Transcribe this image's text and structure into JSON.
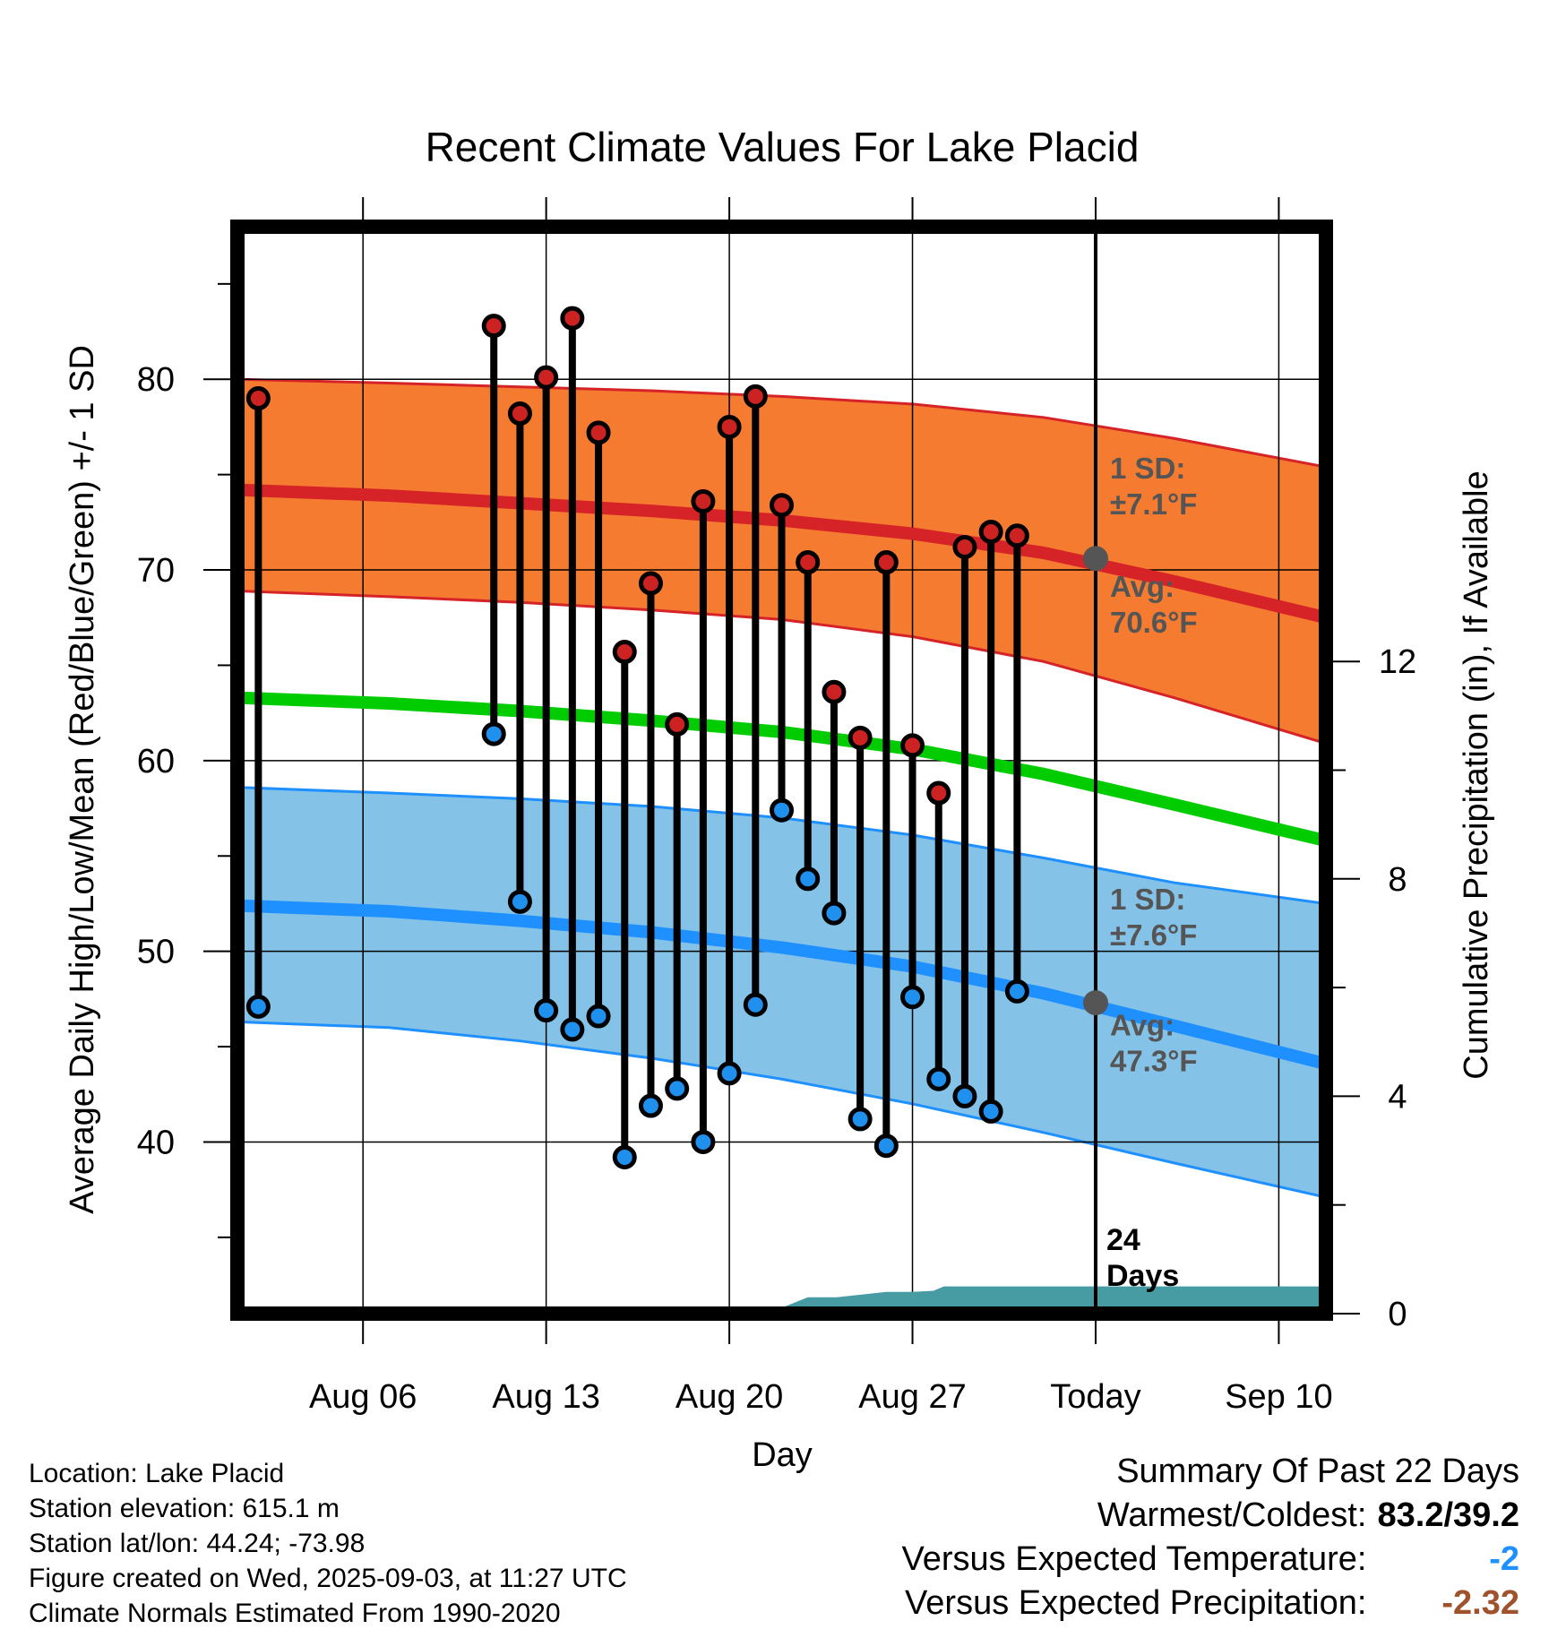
{
  "chart_data": {
    "type": "line",
    "title": "Recent Climate Values For Lake Placid",
    "xlabel": "Day",
    "ylabel": "Average Daily High/Low/Mean (Red/Blue/Green) +/- 1 SD",
    "y2label": "Cumulative Precipitation (in), If Available",
    "xlim": [
      -0.8,
      40.8
    ],
    "ylim": [
      31,
      88
    ],
    "y2lim": [
      0,
      20
    ],
    "x_ticks": [
      {
        "x": 4,
        "label": "Aug 06"
      },
      {
        "x": 11,
        "label": "Aug 13"
      },
      {
        "x": 18,
        "label": "Aug 20"
      },
      {
        "x": 25,
        "label": "Aug 27"
      },
      {
        "x": 32,
        "label": "Today"
      },
      {
        "x": 39,
        "label": "Sep 10"
      }
    ],
    "y_ticks": [
      40,
      50,
      60,
      70,
      80
    ],
    "y2_ticks": [
      0,
      4,
      8,
      12
    ],
    "grid": true,
    "today_x": 32,
    "days_label": "24\nDays",
    "normals": {
      "x": [
        -0.8,
        5,
        10,
        15,
        20,
        25,
        30,
        35,
        40.8
      ],
      "high_avg": [
        74.2,
        73.9,
        73.5,
        73.1,
        72.6,
        71.9,
        70.9,
        69.4,
        67.5
      ],
      "high_upper": [
        80.0,
        79.8,
        79.6,
        79.4,
        79.1,
        78.7,
        78.0,
        76.9,
        75.4
      ],
      "high_lower": [
        68.9,
        68.6,
        68.3,
        67.9,
        67.4,
        66.5,
        65.2,
        63.3,
        60.9
      ],
      "mean": [
        63.3,
        63.0,
        62.6,
        62.1,
        61.5,
        60.6,
        59.3,
        57.7,
        55.8
      ],
      "low_avg": [
        52.4,
        52.1,
        51.6,
        51.0,
        50.2,
        49.2,
        47.8,
        46.1,
        44.1
      ],
      "low_upper": [
        58.6,
        58.3,
        58.0,
        57.6,
        57.0,
        56.1,
        54.9,
        53.6,
        52.5
      ],
      "low_lower": [
        46.3,
        46.0,
        45.3,
        44.4,
        43.3,
        42.0,
        40.5,
        38.9,
        37.1
      ]
    },
    "series": [
      {
        "name": "High",
        "x": [
          0,
          9,
          10,
          11,
          12,
          13,
          14,
          15,
          16,
          17,
          18,
          19,
          20,
          21,
          22,
          23,
          24,
          25,
          26,
          27,
          28,
          29
        ],
        "values": [
          79.0,
          82.8,
          78.2,
          80.1,
          83.2,
          77.2,
          65.7,
          69.3,
          61.9,
          73.6,
          77.5,
          79.1,
          73.4,
          70.4,
          63.6,
          61.2,
          70.4,
          60.8,
          58.3,
          71.2,
          72.0,
          71.8
        ]
      },
      {
        "name": "Low",
        "x": [
          0,
          9,
          10,
          11,
          12,
          13,
          14,
          15,
          16,
          17,
          18,
          19,
          20,
          21,
          22,
          23,
          24,
          25,
          26,
          27,
          28,
          29
        ],
        "values": [
          47.1,
          61.4,
          52.6,
          46.9,
          45.9,
          46.6,
          39.2,
          41.9,
          42.8,
          40.0,
          43.6,
          47.2,
          57.4,
          53.8,
          52.0,
          41.2,
          39.8,
          47.6,
          43.3,
          42.4,
          41.6,
          47.9
        ]
      }
    ],
    "precip": {
      "x": [
        15.8,
        19.7,
        21.0,
        22.1,
        24.0,
        25.0,
        29.0,
        40.8
      ],
      "values": [
        0.05,
        0.08,
        0.3,
        0.3,
        0.4,
        0.5,
        0.5,
        0.5
      ],
      "steps": [
        [
          -0.8,
          0
        ],
        [
          15.8,
          0
        ],
        [
          16.0,
          0.05
        ],
        [
          19.7,
          0.05
        ],
        [
          21.0,
          0.3
        ],
        [
          22.1,
          0.3
        ],
        [
          24.0,
          0.4
        ],
        [
          25.0,
          0.4
        ],
        [
          25.8,
          0.42
        ],
        [
          26.2,
          0.5
        ],
        [
          40.8,
          0.5
        ]
      ]
    },
    "annotations": {
      "high_sd": "1 SD:\n±7.1°F",
      "high_avg": "Avg:\n70.6°F",
      "low_sd": "1 SD:\n±7.6°F",
      "low_avg": "Avg:\n47.3°F",
      "today_high": 70.6,
      "today_low": 47.3
    },
    "colors": {
      "high_band": "#f47b30",
      "high_line": "#d62328",
      "mean_line": "#00cc00",
      "low_band": "#84c2e8",
      "low_line": "#1e90ff",
      "precip": "#479ba3",
      "high_marker": "#cc2222",
      "low_marker": "#2090ee"
    }
  },
  "footer": {
    "location": "Location: Lake Placid",
    "elevation": "Station elevation: 615.1 m",
    "latlon": "Station lat/lon: 44.24; -73.98",
    "created": "Figure created on Wed, 2025-09-03, at 11:27 UTC",
    "normals": "Climate Normals Estimated From 1990-2020"
  },
  "summary": {
    "title": "Summary Of Past 22 Days",
    "warm_cold_label": "Warmest/Coldest:",
    "warm_cold_value": "83.2/39.2",
    "temp_label": "Versus Expected Temperature:",
    "temp_value": "-2",
    "temp_color": "#1e90ff",
    "precip_label": "Versus Expected Precipitation:",
    "precip_value": "-2.32",
    "precip_color": "#a0522d"
  }
}
